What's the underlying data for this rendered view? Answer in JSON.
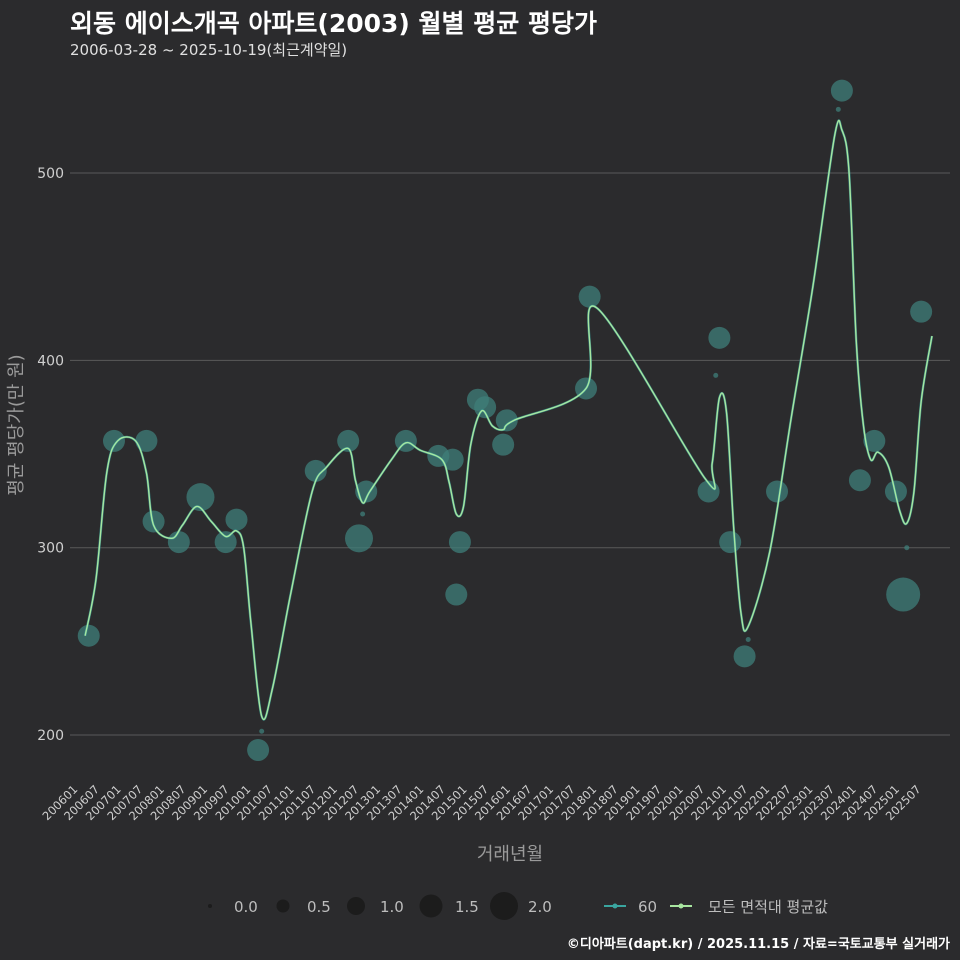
{
  "header": {
    "title": "외동 에이스개곡 아파트(2003) 월별 평균 평당가",
    "subtitle": "2006-03-28 ~ 2025-10-19(최근계약일)"
  },
  "footer": {
    "credit": "©디아파트(dapt.kr) / 2025.11.15 / 자료=국토교통부 실거래가"
  },
  "colors": {
    "background": "#2b2b2d",
    "grid": "#5a5a5a",
    "points": "#3f7f7a",
    "line": "#a8e6a0",
    "line60": "#3aa6a0"
  },
  "chart_data": {
    "type": "line",
    "xlabel": "거래년월",
    "ylabel": "평균 평당가(만 원)",
    "ylim": [
      176,
      555
    ],
    "yticks": [
      200,
      300,
      400,
      500
    ],
    "x_tick_labels": [
      "200601",
      "200607",
      "200701",
      "200707",
      "200801",
      "200807",
      "200901",
      "200907",
      "201001",
      "201007",
      "201101",
      "201107",
      "201201",
      "201207",
      "201301",
      "201307",
      "201401",
      "201407",
      "201501",
      "201507",
      "201601",
      "201607",
      "201701",
      "201707",
      "201801",
      "201807",
      "201901",
      "201907",
      "202001",
      "202007",
      "202101",
      "202107",
      "202201",
      "202207",
      "202301",
      "202307",
      "202401",
      "202407",
      "202501",
      "202507"
    ],
    "series": [
      {
        "name": "60",
        "kind": "points",
        "points": [
          {
            "x": 2006.333,
            "y": 253,
            "count": 1.0
          },
          {
            "x": 2006.917,
            "y": 357,
            "count": 1.0
          },
          {
            "x": 2007.667,
            "y": 357,
            "count": 1.0
          },
          {
            "x": 2007.833,
            "y": 314,
            "count": 1.0
          },
          {
            "x": 2008.417,
            "y": 303,
            "count": 1.0
          },
          {
            "x": 2008.917,
            "y": 327,
            "count": 1.5
          },
          {
            "x": 2009.5,
            "y": 303,
            "count": 1.0
          },
          {
            "x": 2009.75,
            "y": 315,
            "count": 1.0
          },
          {
            "x": 2010.25,
            "y": 192,
            "count": 1.0
          },
          {
            "x": 2010.333,
            "y": 202,
            "count": 0.1
          },
          {
            "x": 2011.583,
            "y": 341,
            "count": 1.0
          },
          {
            "x": 2012.333,
            "y": 357,
            "count": 1.0
          },
          {
            "x": 2012.583,
            "y": 305,
            "count": 1.5
          },
          {
            "x": 2012.667,
            "y": 318,
            "count": 0.1
          },
          {
            "x": 2012.75,
            "y": 330,
            "count": 1.0
          },
          {
            "x": 2013.667,
            "y": 357,
            "count": 1.0
          },
          {
            "x": 2014.417,
            "y": 349,
            "count": 1.0
          },
          {
            "x": 2014.75,
            "y": 347,
            "count": 1.0
          },
          {
            "x": 2014.833,
            "y": 275,
            "count": 1.0
          },
          {
            "x": 2014.917,
            "y": 303,
            "count": 1.0
          },
          {
            "x": 2015.333,
            "y": 379,
            "count": 1.0
          },
          {
            "x": 2015.5,
            "y": 375,
            "count": 1.0
          },
          {
            "x": 2015.917,
            "y": 355,
            "count": 1.0
          },
          {
            "x": 2016.0,
            "y": 368,
            "count": 1.0
          },
          {
            "x": 2017.833,
            "y": 385,
            "count": 1.0
          },
          {
            "x": 2017.917,
            "y": 434,
            "count": 1.0
          },
          {
            "x": 2020.667,
            "y": 330,
            "count": 1.0
          },
          {
            "x": 2020.917,
            "y": 412,
            "count": 1.0
          },
          {
            "x": 2020.833,
            "y": 392,
            "count": 0.1
          },
          {
            "x": 2021.167,
            "y": 303,
            "count": 1.0
          },
          {
            "x": 2021.5,
            "y": 242,
            "count": 1.0
          },
          {
            "x": 2021.583,
            "y": 251,
            "count": 0.1
          },
          {
            "x": 2022.25,
            "y": 330,
            "count": 1.0
          },
          {
            "x": 2023.75,
            "y": 544,
            "count": 1.0
          },
          {
            "x": 2023.667,
            "y": 534,
            "count": 0.1
          },
          {
            "x": 2024.167,
            "y": 336,
            "count": 1.0
          },
          {
            "x": 2024.5,
            "y": 357,
            "count": 1.0
          },
          {
            "x": 2025.0,
            "y": 330,
            "count": 1.0
          },
          {
            "x": 2025.167,
            "y": 275,
            "count": 2.0
          },
          {
            "x": 2025.25,
            "y": 300,
            "count": 0.1
          },
          {
            "x": 2025.583,
            "y": 426,
            "count": 1.0
          }
        ]
      },
      {
        "name": "모든 면적대 평균값",
        "kind": "line",
        "points": [
          {
            "x": 2006.25,
            "y": 253
          },
          {
            "x": 2006.5,
            "y": 283
          },
          {
            "x": 2006.75,
            "y": 340
          },
          {
            "x": 2007.0,
            "y": 357
          },
          {
            "x": 2007.417,
            "y": 357
          },
          {
            "x": 2007.667,
            "y": 340
          },
          {
            "x": 2007.833,
            "y": 312
          },
          {
            "x": 2008.25,
            "y": 305
          },
          {
            "x": 2008.5,
            "y": 312
          },
          {
            "x": 2008.833,
            "y": 322
          },
          {
            "x": 2009.167,
            "y": 314
          },
          {
            "x": 2009.5,
            "y": 306
          },
          {
            "x": 2009.75,
            "y": 309
          },
          {
            "x": 2009.917,
            "y": 300
          },
          {
            "x": 2010.083,
            "y": 260
          },
          {
            "x": 2010.333,
            "y": 210
          },
          {
            "x": 2010.583,
            "y": 225
          },
          {
            "x": 2011.0,
            "y": 275
          },
          {
            "x": 2011.5,
            "y": 330
          },
          {
            "x": 2011.833,
            "y": 343
          },
          {
            "x": 2012.333,
            "y": 353
          },
          {
            "x": 2012.5,
            "y": 336
          },
          {
            "x": 2012.667,
            "y": 324
          },
          {
            "x": 2012.833,
            "y": 330
          },
          {
            "x": 2013.333,
            "y": 347
          },
          {
            "x": 2013.667,
            "y": 356
          },
          {
            "x": 2014.0,
            "y": 352
          },
          {
            "x": 2014.5,
            "y": 347
          },
          {
            "x": 2014.667,
            "y": 335
          },
          {
            "x": 2014.833,
            "y": 318
          },
          {
            "x": 2015.0,
            "y": 322
          },
          {
            "x": 2015.167,
            "y": 355
          },
          {
            "x": 2015.417,
            "y": 373
          },
          {
            "x": 2015.667,
            "y": 365
          },
          {
            "x": 2015.917,
            "y": 363
          },
          {
            "x": 2016.167,
            "y": 368
          },
          {
            "x": 2017.833,
            "y": 385
          },
          {
            "x": 2018.083,
            "y": 428
          },
          {
            "x": 2020.583,
            "y": 337
          },
          {
            "x": 2020.75,
            "y": 345
          },
          {
            "x": 2020.917,
            "y": 380
          },
          {
            "x": 2021.083,
            "y": 372
          },
          {
            "x": 2021.25,
            "y": 310
          },
          {
            "x": 2021.417,
            "y": 265
          },
          {
            "x": 2021.583,
            "y": 258
          },
          {
            "x": 2022.083,
            "y": 298
          },
          {
            "x": 2022.583,
            "y": 370
          },
          {
            "x": 2023.083,
            "y": 440
          },
          {
            "x": 2023.583,
            "y": 520
          },
          {
            "x": 2023.75,
            "y": 523
          },
          {
            "x": 2023.917,
            "y": 500
          },
          {
            "x": 2024.083,
            "y": 410
          },
          {
            "x": 2024.25,
            "y": 365
          },
          {
            "x": 2024.417,
            "y": 347
          },
          {
            "x": 2024.583,
            "y": 351
          },
          {
            "x": 2024.833,
            "y": 343
          },
          {
            "x": 2025.083,
            "y": 320
          },
          {
            "x": 2025.25,
            "y": 313
          },
          {
            "x": 2025.417,
            "y": 330
          },
          {
            "x": 2025.583,
            "y": 378
          },
          {
            "x": 2025.833,
            "y": 413
          }
        ]
      }
    ],
    "size_legend": [
      0.0,
      0.5,
      1.0,
      1.5,
      2.0
    ],
    "legend_series": [
      "60",
      "모든 면적대 평균값"
    ]
  }
}
